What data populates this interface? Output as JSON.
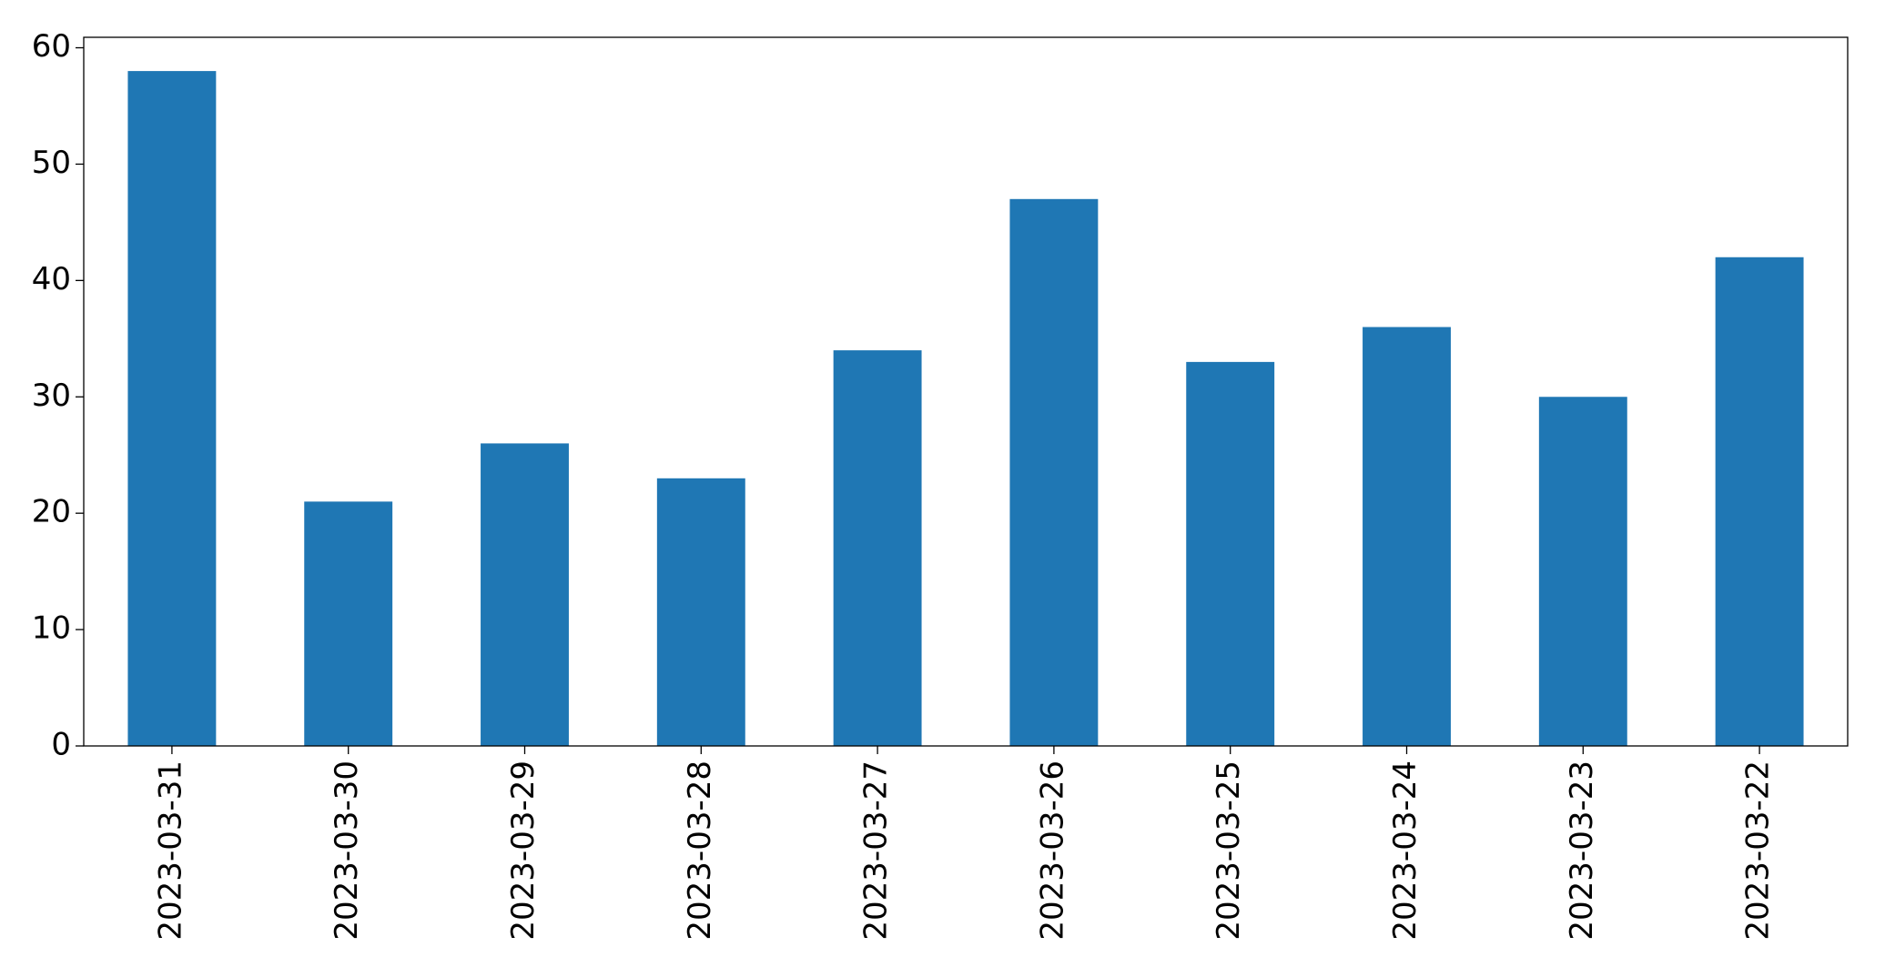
{
  "chart_data": {
    "type": "bar",
    "categories": [
      "2023-03-31",
      "2023-03-30",
      "2023-03-29",
      "2023-03-28",
      "2023-03-27",
      "2023-03-26",
      "2023-03-25",
      "2023-03-24",
      "2023-03-23",
      "2023-03-22"
    ],
    "values": [
      58,
      21,
      26,
      23,
      34,
      47,
      33,
      36,
      30,
      42
    ],
    "color": "#1f77b4",
    "ylim": [
      0,
      60.9
    ],
    "yticks": [
      0,
      10,
      20,
      30,
      40,
      50,
      60
    ],
    "grid": false
  }
}
